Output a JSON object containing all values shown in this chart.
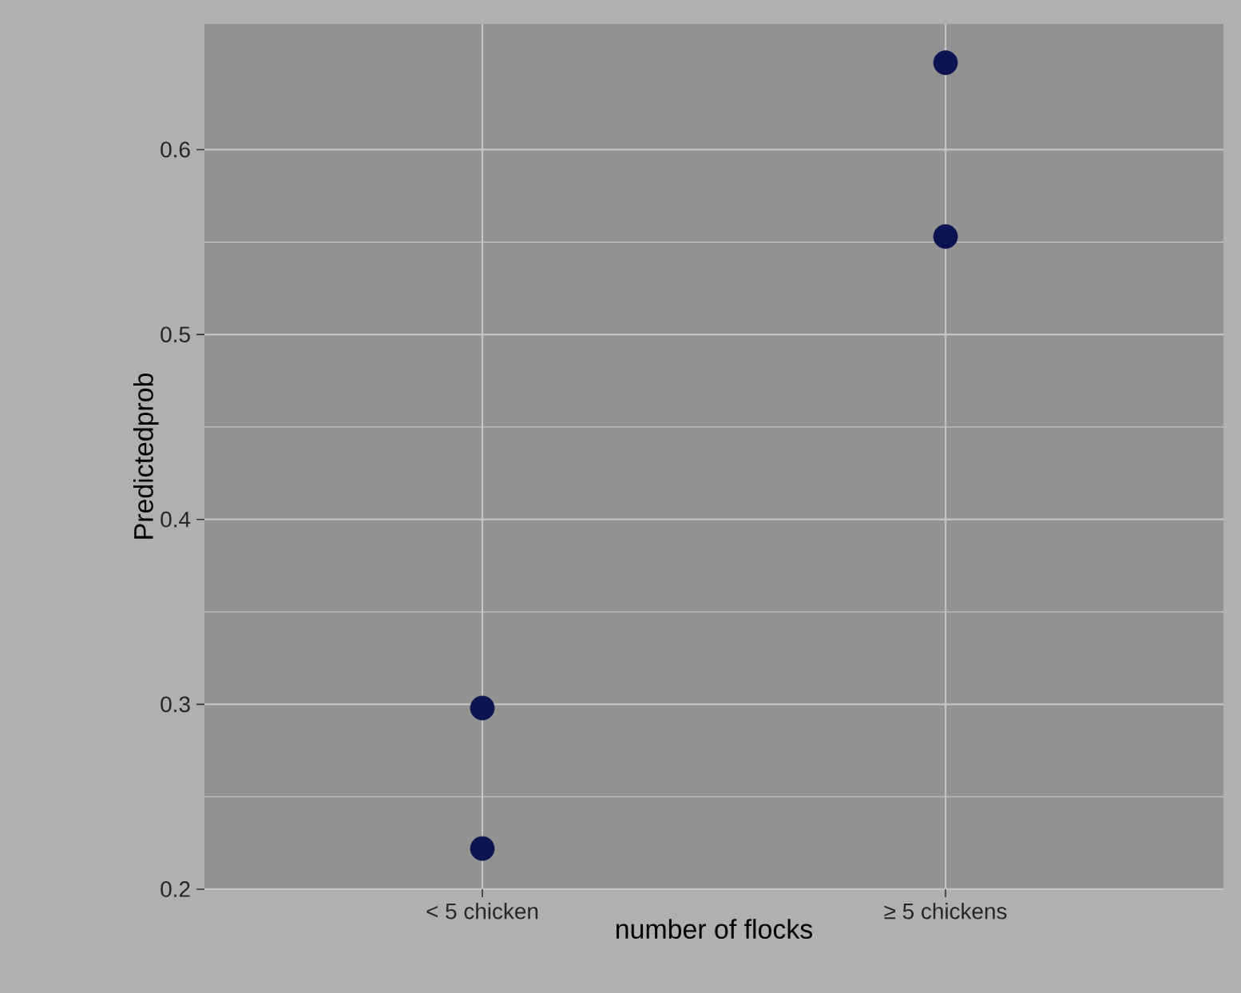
{
  "chart_data": {
    "type": "scatter",
    "xlabel": "number of flocks",
    "ylabel": "Predictedprob",
    "categories": [
      "< 5 chicken",
      "≥ 5 chickens"
    ],
    "series": [
      {
        "color": "#0a1450",
        "values": [
          0.222,
          0.553
        ]
      },
      {
        "color": "#0a1450",
        "values": [
          0.298,
          0.647
        ]
      }
    ],
    "ylim": [
      0.2,
      0.668
    ],
    "yticks": [
      0.2,
      0.3,
      0.4,
      0.5,
      0.6
    ],
    "grid": true,
    "marker": "circle"
  }
}
